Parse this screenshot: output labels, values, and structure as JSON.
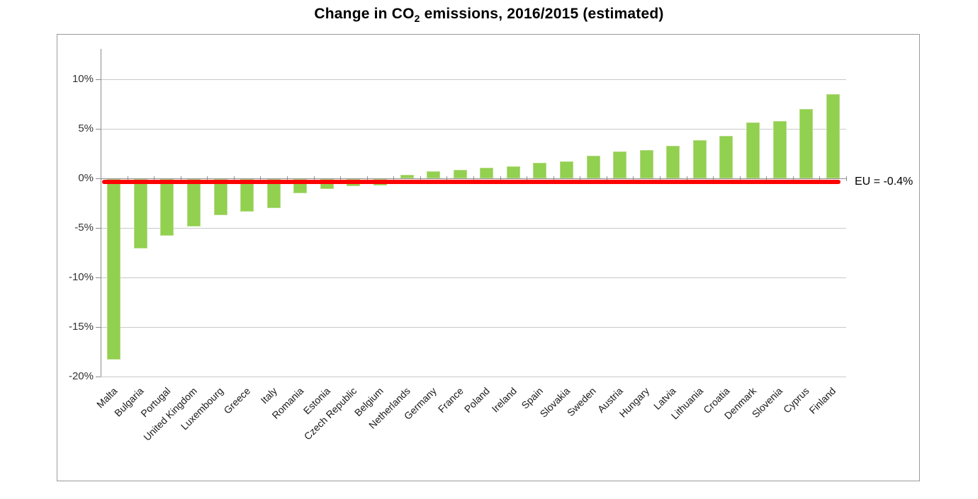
{
  "title": {
    "prefix": "Change in CO",
    "sub": "2",
    "suffix": " emissions, 2016/2015 (estimated)"
  },
  "chart_data": {
    "type": "bar",
    "title": "Change in CO2 emissions, 2016/2015 (estimated)",
    "categories": [
      "Malta",
      "Bulgaria",
      "Portugal",
      "United Kingdom",
      "Luxembourg",
      "Greece",
      "Italy",
      "Romania",
      "Estonia",
      "Czech Republic",
      "Belgium",
      "Netherlands",
      "Germany",
      "France",
      "Poland",
      "Ireland",
      "Spain",
      "Slovakia",
      "Sweden",
      "Austria",
      "Hungary",
      "Latvia",
      "Lithuania",
      "Croatia",
      "Denmark",
      "Slovenia",
      "Cyprus",
      "Finland"
    ],
    "values": [
      -18.2,
      -7.0,
      -5.7,
      -4.8,
      -3.6,
      -3.3,
      -2.9,
      -1.4,
      -1.0,
      -0.7,
      -0.6,
      0.4,
      0.7,
      0.9,
      1.1,
      1.2,
      1.6,
      1.7,
      2.3,
      2.7,
      2.9,
      3.3,
      3.9,
      4.3,
      5.7,
      5.8,
      7.0,
      8.5
    ],
    "unit": "%",
    "xlabel": "",
    "ylabel": "",
    "y_ticks": [
      {
        "value": 10,
        "label": "10%"
      },
      {
        "value": 5,
        "label": "5%"
      },
      {
        "value": 0,
        "label": "0%"
      },
      {
        "value": -5,
        "label": "-5%"
      },
      {
        "value": -10,
        "label": "-10%"
      },
      {
        "value": -15,
        "label": "-15%"
      },
      {
        "value": -20,
        "label": "-20%"
      }
    ],
    "ylim": [
      -20,
      13.1
    ],
    "grid": true,
    "legend": "none",
    "reference_line": {
      "value": -0.4,
      "label": "EU = -0.4%",
      "color": "#ff0000"
    },
    "colors": {
      "bar_fill": "#92d050",
      "bar_border": "#b5dc85",
      "gridline": "#c9c9c9",
      "axis": "#8c8c8c",
      "reference": "#ff0000",
      "text": "#333333"
    }
  }
}
